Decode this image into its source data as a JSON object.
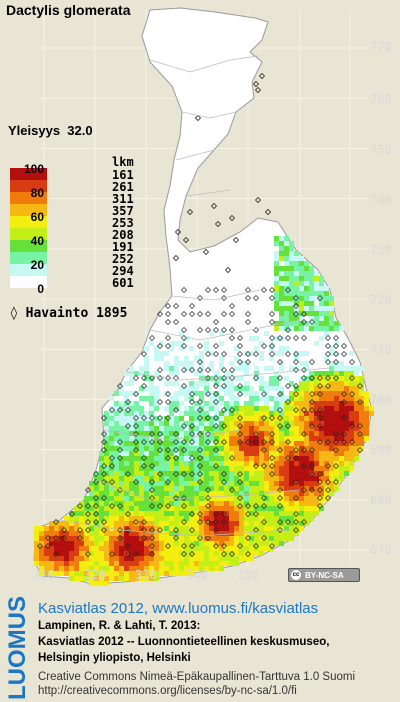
{
  "title": "Dactylis glomerata",
  "yleisyys_label": "Yleisyys",
  "yleisyys_value": "32.0",
  "legend": {
    "scale_labels": [
      "100",
      "80",
      "60",
      "40",
      "20",
      "0"
    ],
    "lkm_header": "lkm",
    "counts": [
      "161",
      "261",
      "311",
      "357",
      "253",
      "208",
      "191",
      "252",
      "294",
      "601"
    ],
    "colors": [
      "#b40f0f",
      "#d83c12",
      "#f07c0c",
      "#f6b814",
      "#f4ee10",
      "#c4ee18",
      "#66e03a",
      "#78f2a4",
      "#c6f8f4",
      "#ffffff"
    ]
  },
  "havainto": {
    "marker": "◊",
    "label": "Havainto 1895"
  },
  "grid": {
    "north": [
      "770",
      "760",
      "750",
      "740",
      "730",
      "720",
      "710",
      "700",
      "690",
      "680",
      "670"
    ],
    "east": [
      "310",
      "320",
      "330",
      "340",
      "350",
      "360",
      "370"
    ]
  },
  "license_badge": "BY-NC-SA",
  "footer": {
    "logo": "LUOMUS",
    "link": "Kasviatlas 2012, www.luomus.fi/kasviatlas",
    "citation_line1": "Lampinen, R. & Lahti, T. 2013:",
    "citation_line2": "Kasviatlas 2012 -- Luonnontieteellinen keskusmuseo,",
    "citation_line3": "Helsingin yliopisto, Helsinki",
    "cc_line1": "Creative Commons Nimeä-Epäkaupallinen-Tarttuva 1.0 Suomi",
    "cc_line2": "http://creativecommons.org/licenses/by-nc-sa/1.0/fi"
  }
}
